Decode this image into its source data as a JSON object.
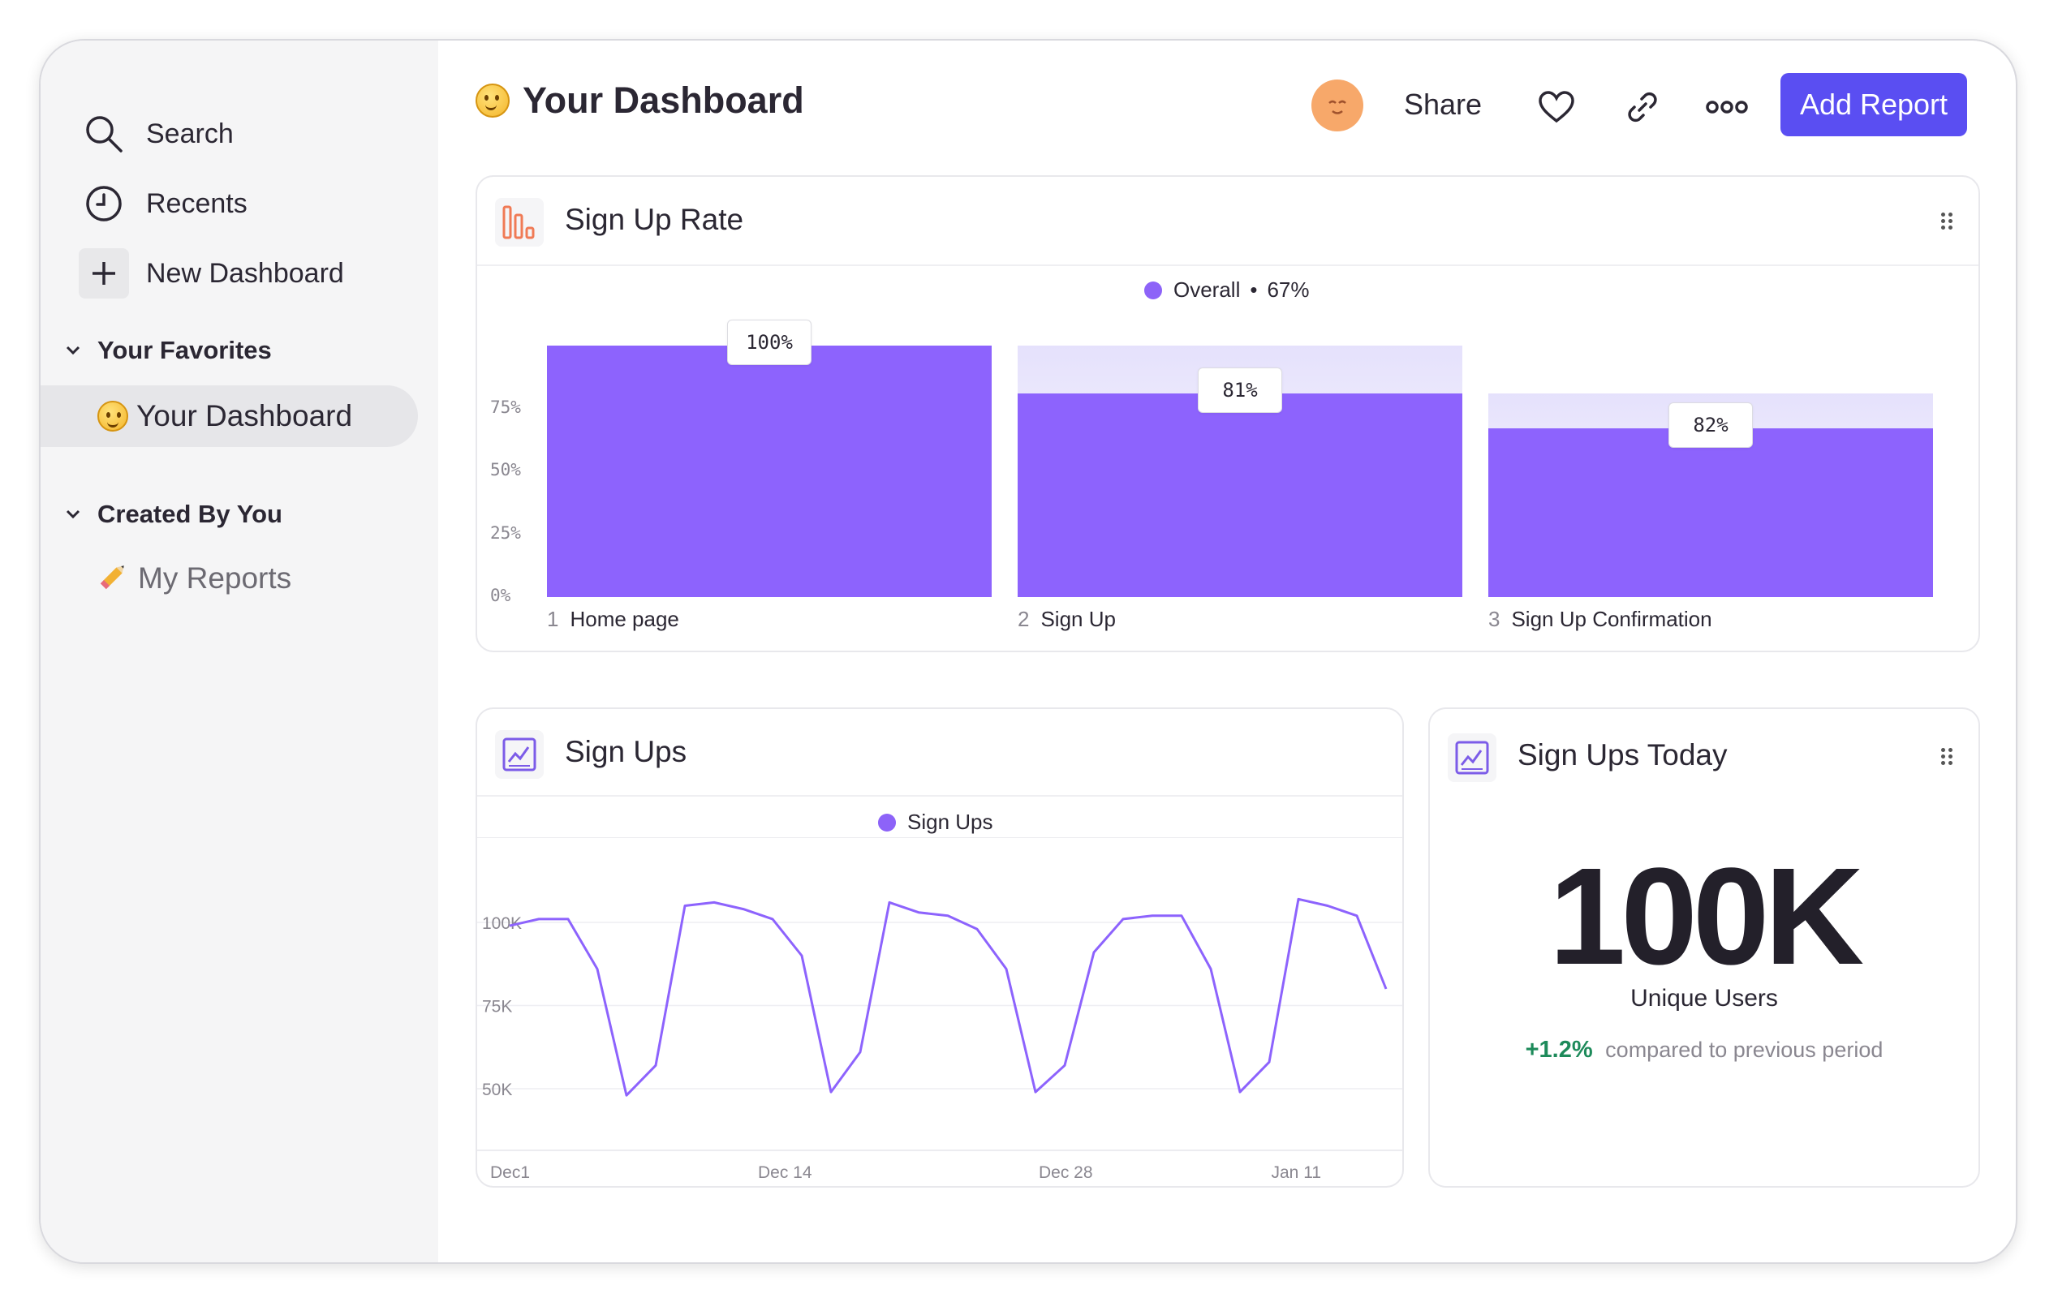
{
  "sidebar": {
    "search_label": "Search",
    "recents_label": "Recents",
    "new_dashboard_label": "New Dashboard",
    "favorites_heading": "Your Favorites",
    "favorites_item": "Your Dashboard",
    "created_heading": "Created By You",
    "created_item": "My Reports"
  },
  "header": {
    "title": "Your Dashboard",
    "share_label": "Share",
    "add_report_label": "Add Report"
  },
  "colors": {
    "accent": "#5a4ef2",
    "bar": "#8d63fd",
    "positive": "#1d8a5a"
  },
  "signup_rate": {
    "title": "Sign Up Rate",
    "legend_label": "Overall",
    "legend_sep": "•",
    "legend_value": "67%",
    "ticks": [
      "75%",
      "50%",
      "25%",
      "0%"
    ],
    "steps": [
      {
        "num": "1",
        "name": "Home page",
        "label": "100%"
      },
      {
        "num": "2",
        "name": "Sign Up",
        "label": "81%"
      },
      {
        "num": "3",
        "name": "Sign Up Confirmation",
        "label": "82%"
      }
    ]
  },
  "sign_ups": {
    "title": "Sign Ups",
    "legend_label": "Sign Ups",
    "yticks": [
      "100K",
      "75K",
      "50K"
    ],
    "xticks": [
      "Dec1",
      "Dec 14",
      "Dec 28",
      "Jan 11"
    ]
  },
  "sign_ups_today": {
    "title": "Sign Ups Today",
    "value": "100K",
    "subtitle": "Unique Users",
    "change": "+1.2%",
    "change_text": "compared to previous period"
  },
  "chart_data": [
    {
      "type": "bar",
      "title": "Sign Up Rate",
      "categories": [
        "Home page",
        "Sign Up",
        "Sign Up Confirmation"
      ],
      "series": [
        {
          "name": "Overall",
          "values": [
            100,
            81,
            67
          ]
        }
      ],
      "step_conversion": [
        100,
        81,
        82
      ],
      "ylim": [
        0,
        100
      ],
      "legend": "top-center"
    },
    {
      "type": "line",
      "title": "Sign Ups",
      "series": [
        {
          "name": "Sign Ups",
          "values": [
            99,
            101,
            101,
            86,
            48,
            57,
            105,
            106,
            104,
            101,
            90,
            49,
            61,
            106,
            103,
            102,
            98,
            86,
            49,
            57,
            91,
            101,
            102,
            102,
            86,
            49,
            58,
            107,
            105,
            102,
            80
          ]
        }
      ],
      "x_start": "Dec1",
      "x_end": "Jan 11",
      "xticks": [
        "Dec1",
        "Dec 14",
        "Dec 28",
        "Jan 11"
      ],
      "ylabel_unit": "K",
      "legend": "top-center"
    }
  ]
}
